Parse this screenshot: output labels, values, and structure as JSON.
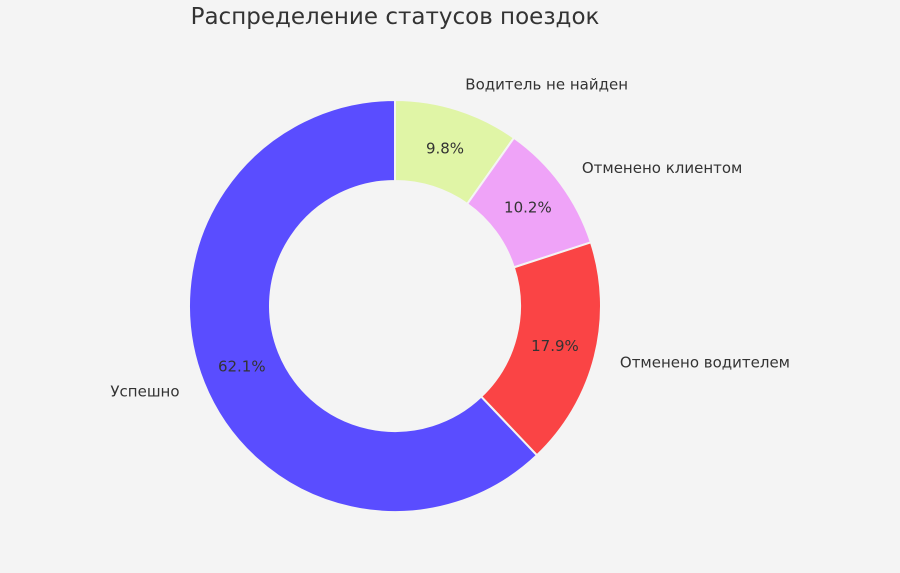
{
  "chart_data": {
    "type": "pie",
    "title": "Распределение статусов поездок",
    "categories": [
      "Водитель не найден",
      "Отменено клиентом",
      "Отменено водителем",
      "Успешно"
    ],
    "values": [
      9.8,
      10.2,
      17.9,
      62.1
    ],
    "value_labels": [
      "9.8%",
      "10.2%",
      "17.9%",
      "62.1%"
    ],
    "colors": [
      "#e0f5a6",
      "#efa3f8",
      "#fa4445",
      "#5a4dff"
    ],
    "donut": true,
    "start": "top",
    "direction": "clockwise",
    "legend": "none"
  }
}
